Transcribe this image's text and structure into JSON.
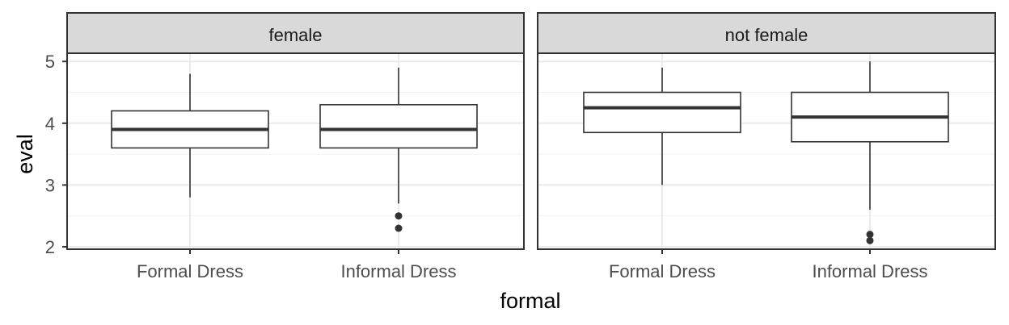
{
  "chart_data": {
    "type": "box",
    "facet_var": "gender",
    "xlabel": "formal",
    "ylabel": "eval",
    "ylim": [
      1.97,
      5.05
    ],
    "yticks": [
      2,
      3,
      4,
      5
    ],
    "categories": [
      "Formal Dress",
      "Informal Dress"
    ],
    "grid": true,
    "panels": [
      {
        "strip": "female",
        "boxes": [
          {
            "category": "Formal Dress",
            "whisker_low": 2.8,
            "q1": 3.6,
            "median": 3.9,
            "q3": 4.2,
            "whisker_high": 4.8,
            "outliers": []
          },
          {
            "category": "Informal Dress",
            "whisker_low": 2.7,
            "q1": 3.6,
            "median": 3.9,
            "q3": 4.3,
            "whisker_high": 4.9,
            "outliers": [
              2.5,
              2.3
            ]
          }
        ]
      },
      {
        "strip": "not female",
        "boxes": [
          {
            "category": "Formal Dress",
            "whisker_low": 3.0,
            "q1": 3.85,
            "median": 4.25,
            "q3": 4.5,
            "whisker_high": 4.9,
            "outliers": []
          },
          {
            "category": "Informal Dress",
            "whisker_low": 2.6,
            "q1": 3.7,
            "median": 4.1,
            "q3": 4.5,
            "whisker_high": 5.0,
            "outliers": [
              2.2,
              2.1
            ]
          }
        ]
      }
    ]
  }
}
